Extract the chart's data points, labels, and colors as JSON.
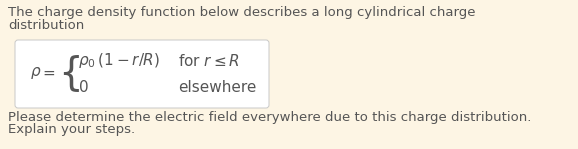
{
  "bg_color": "#fdf5e4",
  "box_color": "#ffffff",
  "box_border_color": "#c8c8c8",
  "text_color": "#555555",
  "title_line1": "The charge density function below describes a long cylindrical charge",
  "title_line2": "distribution",
  "footer_line1": "Please determine the electric field everywhere due to this charge distribution.",
  "footer_line2": "Explain your steps.",
  "font_size_body": 9.5,
  "font_size_math": 11.0,
  "font_size_rho": 11.0,
  "font_size_brace": 28
}
